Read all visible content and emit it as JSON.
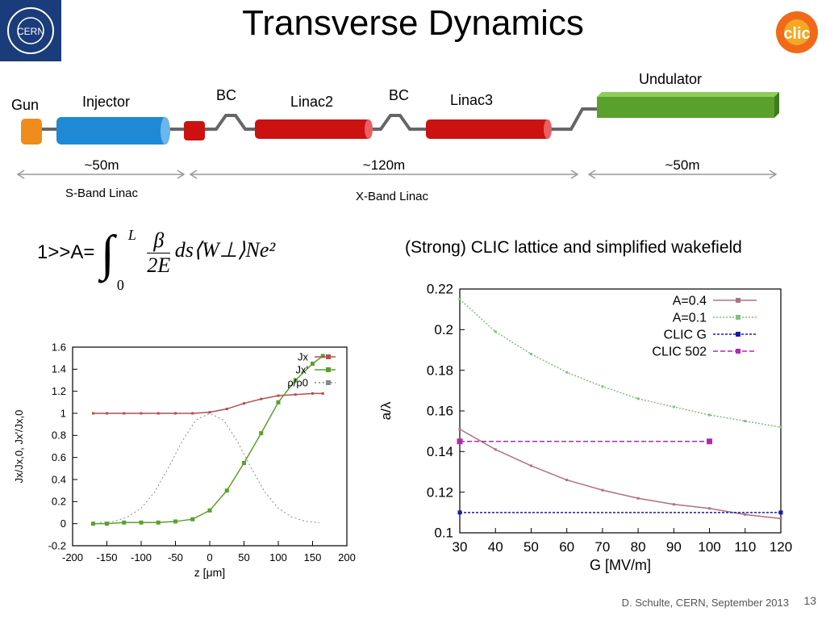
{
  "slide": {
    "title": "Transverse Dynamics",
    "footer": "D. Schulte, CERN, September 2013",
    "page": "13",
    "cern_logo_text": "CERN",
    "clic_logo_text": "clic",
    "formula_lhs": "1>>A=",
    "formula_upper": "L",
    "formula_lower": "0",
    "formula_num": "β",
    "formula_den": "2E",
    "formula_rest": "ds⟨W⊥⟩Ne²",
    "right_plot_caption": "(Strong) CLIC lattice and simplified wakefield",
    "colors": {
      "accent_blue": "#1a3c7a",
      "injector": "#1e8ad6",
      "linac": "#cc1111",
      "undulator": "#5aa02c",
      "gun": "#f08c1c"
    }
  },
  "diagram": {
    "labels": {
      "gun": "Gun",
      "injector": "Injector",
      "bc1": "BC",
      "linac2": "Linac2",
      "bc2": "BC",
      "linac3": "Linac3",
      "undulator": "Undulator"
    },
    "lengths": [
      "~50m",
      "~120m",
      "~50m"
    ],
    "sections": [
      "S-Band Linac",
      "X-Band Linac"
    ]
  },
  "chart_data": [
    {
      "type": "line",
      "xlabel": "z [μm]",
      "ylabel": "Jx/Jx,0, Jx'/Jx,0",
      "xlim": [
        -200,
        200
      ],
      "ylim": [
        -0.2,
        1.6
      ],
      "xticks": [
        "-200",
        "-150",
        "-100",
        "-50",
        "0",
        "50",
        "100",
        "150",
        "200"
      ],
      "yticks": [
        "-0.2",
        "0",
        "0.2",
        "0.4",
        "0.6",
        "0.8",
        "1",
        "1.2",
        "1.4",
        "1.6"
      ],
      "legend": [
        "Jx",
        "Jx'",
        "ρ/ρ0"
      ],
      "legend_position": "top-right",
      "series": [
        {
          "name": "Jx",
          "color": "#b05050",
          "x": [
            -170,
            -150,
            -125,
            -100,
            -75,
            -50,
            -25,
            0,
            25,
            50,
            75,
            100,
            125,
            150,
            165
          ],
          "y": [
            1.0,
            1.0,
            1.0,
            1.0,
            1.0,
            1.0,
            1.0,
            1.01,
            1.04,
            1.09,
            1.13,
            1.16,
            1.17,
            1.18,
            1.18
          ]
        },
        {
          "name": "Jx'",
          "color": "#5aa02c",
          "x": [
            -170,
            -150,
            -125,
            -100,
            -75,
            -50,
            -25,
            0,
            25,
            50,
            75,
            100,
            125,
            150,
            165
          ],
          "y": [
            0.0,
            0.0,
            0.01,
            0.01,
            0.01,
            0.02,
            0.04,
            0.12,
            0.3,
            0.55,
            0.82,
            1.1,
            1.3,
            1.45,
            1.52
          ]
        },
        {
          "name": "ρ/ρ0",
          "color": "#888888",
          "x": [
            -160,
            -140,
            -120,
            -100,
            -80,
            -60,
            -40,
            -20,
            0,
            20,
            40,
            60,
            80,
            100,
            120,
            140,
            160
          ],
          "y": [
            0.01,
            0.02,
            0.06,
            0.14,
            0.29,
            0.51,
            0.75,
            0.94,
            1.0,
            0.94,
            0.75,
            0.51,
            0.29,
            0.14,
            0.06,
            0.02,
            0.01
          ]
        }
      ]
    },
    {
      "type": "line",
      "xlabel": "G [MV/m]",
      "ylabel": "a/λ",
      "xlim": [
        30,
        120
      ],
      "ylim": [
        0.1,
        0.22
      ],
      "xticks": [
        "30",
        "40",
        "50",
        "60",
        "70",
        "80",
        "90",
        "100",
        "110",
        "120"
      ],
      "yticks": [
        "0.1",
        "0.12",
        "0.14",
        "0.16",
        "0.18",
        "0.2",
        "0.22"
      ],
      "legend": [
        "A=0.4",
        "A=0.1",
        "CLIC G",
        "CLIC 502"
      ],
      "legend_position": "top-right",
      "series": [
        {
          "name": "A=0.4",
          "color": "#b07080",
          "x": [
            30,
            40,
            50,
            60,
            70,
            80,
            90,
            100,
            110,
            120
          ],
          "y": [
            0.151,
            0.141,
            0.133,
            0.126,
            0.121,
            0.117,
            0.114,
            0.112,
            0.109,
            0.107
          ]
        },
        {
          "name": "A=0.1",
          "color": "#7fbf7f",
          "x": [
            30,
            40,
            50,
            60,
            70,
            80,
            90,
            100,
            110,
            120
          ],
          "y": [
            0.215,
            0.199,
            0.188,
            0.179,
            0.172,
            0.166,
            0.162,
            0.158,
            0.155,
            0.152
          ]
        },
        {
          "name": "CLIC G",
          "color": "#1a1aaa",
          "x": [
            30,
            120
          ],
          "y": [
            0.11,
            0.11
          ]
        },
        {
          "name": "CLIC 502",
          "color": "#b02ab0",
          "x": [
            30,
            100
          ],
          "y": [
            0.145,
            0.145
          ]
        }
      ]
    }
  ]
}
